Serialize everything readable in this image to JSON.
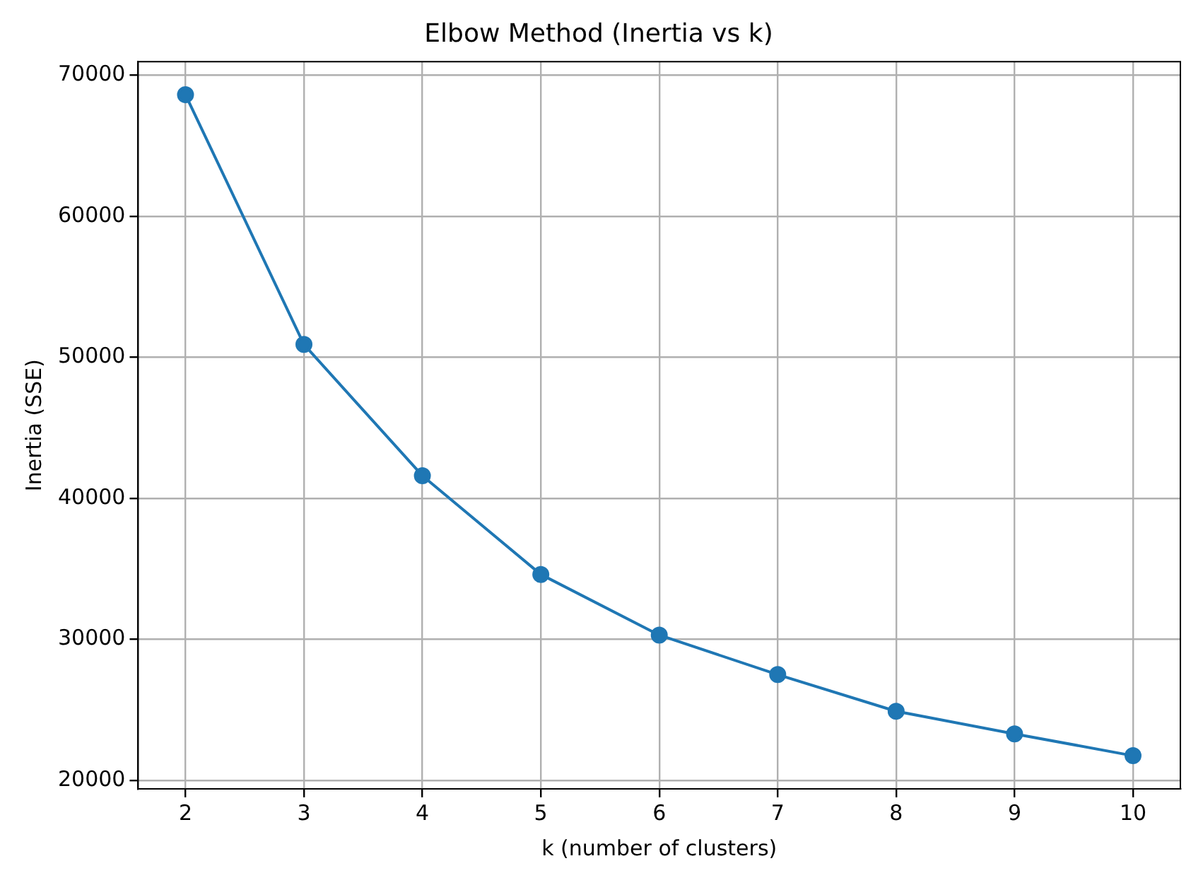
{
  "chart_data": {
    "type": "line",
    "title": "Elbow Method (Inertia vs k)",
    "xlabel": "k (number of clusters)",
    "ylabel": "Inertia (SSE)",
    "x": [
      2,
      3,
      4,
      5,
      6,
      7,
      8,
      9,
      10
    ],
    "series": [
      {
        "color": "#1f77b4",
        "values": [
          68600,
          50900,
          41600,
          34600,
          30300,
          27500,
          24900,
          23300,
          21750
        ]
      }
    ],
    "xlim": [
      1.6,
      10.4
    ],
    "xticks": [
      2,
      3,
      4,
      5,
      6,
      7,
      8,
      9,
      10
    ],
    "ylim": [
      19400,
      70950
    ],
    "yticks": [
      20000,
      30000,
      40000,
      50000,
      60000,
      70000
    ],
    "grid": true,
    "marker": "circle",
    "line_style": "solid"
  }
}
